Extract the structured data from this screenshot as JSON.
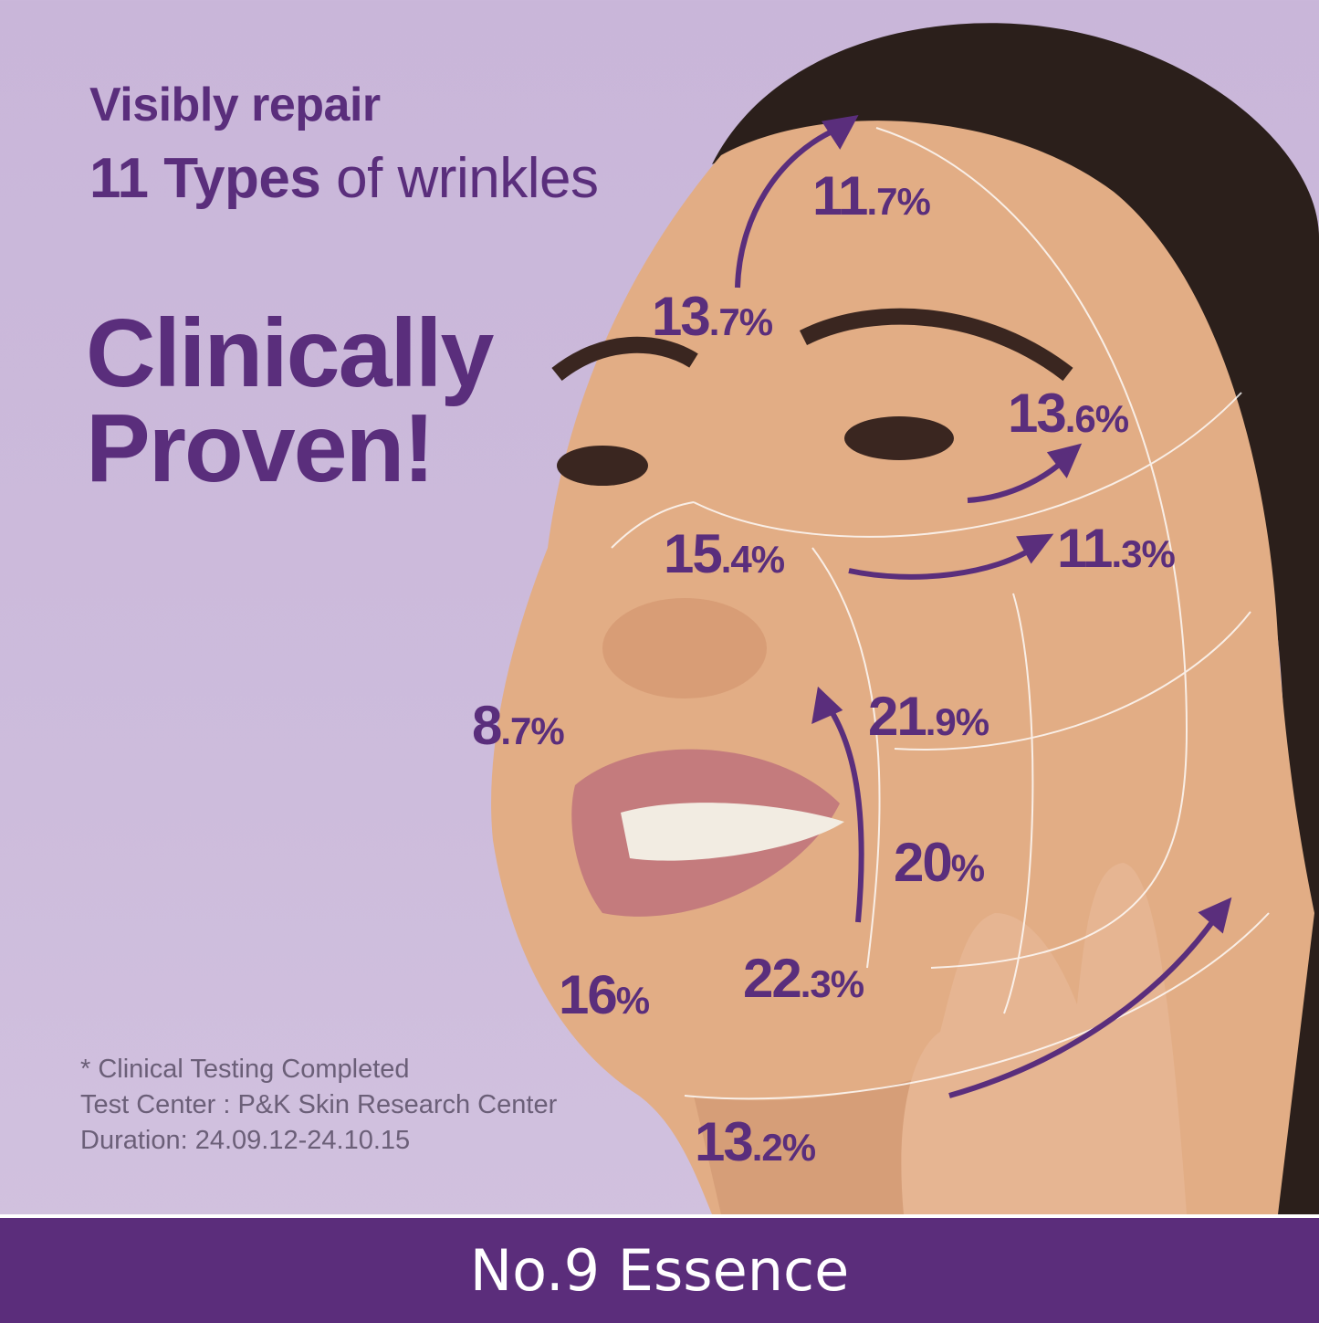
{
  "headline": {
    "line1": "Visibly repair",
    "line2_bold": "11 Types",
    "line2_rest": " of wrinkles",
    "line3": "Clinically",
    "line4": "Proven!"
  },
  "improvements": [
    {
      "major": "11",
      "minor": ".7%"
    },
    {
      "major": "13",
      "minor": ".7%"
    },
    {
      "major": "13",
      "minor": ".6%"
    },
    {
      "major": "11",
      "minor": ".3%"
    },
    {
      "major": "15",
      "minor": ".4%"
    },
    {
      "major": "8",
      "minor": ".7%"
    },
    {
      "major": "21",
      "minor": ".9%"
    },
    {
      "major": "20",
      "minor": "%"
    },
    {
      "major": "16",
      "minor": "%"
    },
    {
      "major": "22",
      "minor": ".3%"
    },
    {
      "major": "13",
      "minor": ".2%"
    }
  ],
  "notes": {
    "line1": "* Clinical Testing Completed",
    "line2": "Test Center : P&K Skin Research Center",
    "line3": "Duration: 24.09.12-24.10.15"
  },
  "banner": {
    "product_name": "No.9 Essence"
  },
  "colors": {
    "accent": "#5b2d7b",
    "background": "#cdbcdc",
    "text_note": "#6b5f78"
  }
}
